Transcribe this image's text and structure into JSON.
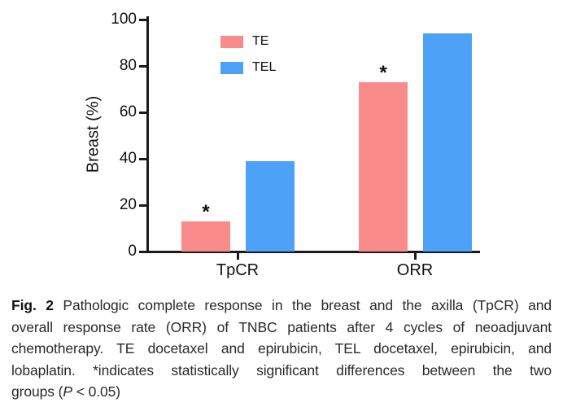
{
  "figure": {
    "caption": {
      "fig_label": "Fig. 2",
      "line1_rest": "Pathologic complete response in the breast and the axilla (TpCR) and",
      "line2": "overall response rate (ORR) of TNBC patients after 4 cycles of neoadjuvant",
      "line3": "chemotherapy. TE docetaxel and epirubicin, TEL docetaxel, epirubicin, and",
      "line4": "lobaplatin. *indicates statistically significant differences between the two",
      "line5_pre": "groups (",
      "line5_italic": "P",
      "line5_post": " < 0.05)"
    }
  },
  "chart_data": {
    "type": "bar",
    "categories": [
      "TpCR",
      "ORR"
    ],
    "series": [
      {
        "name": "TE",
        "color": "#F98B8B",
        "values": [
          13,
          73
        ],
        "significant": [
          true,
          true
        ]
      },
      {
        "name": "TEL",
        "color": "#4DA1F6",
        "values": [
          39,
          94
        ],
        "significant": [
          false,
          false
        ]
      }
    ],
    "title": "",
    "xlabel": "",
    "ylabel": "Breast (%)",
    "ylim": [
      0,
      100
    ],
    "yticks": [
      0,
      20,
      40,
      60,
      80,
      100
    ],
    "grid": false,
    "legend_position": "upper-left-inside",
    "significance_marker": "*",
    "axis_color": "#1a1a1a"
  }
}
